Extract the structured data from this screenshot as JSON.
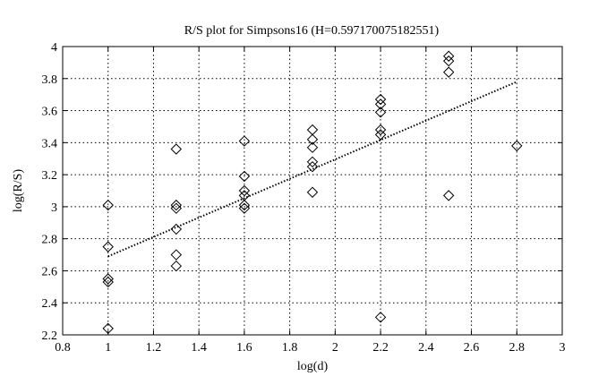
{
  "chart_data": {
    "type": "scatter",
    "title": "R/S plot for Simpsons16 (H=0.597170075182551)",
    "xlabel": "log(d)",
    "ylabel": "log(R/S)",
    "xlim": [
      0.8,
      3.0
    ],
    "ylim": [
      2.2,
      4.0
    ],
    "grid": true,
    "x_ticks": [
      0.8,
      1,
      1.2,
      1.4,
      1.6,
      1.8,
      2,
      2.2,
      2.4,
      2.6,
      2.8,
      3
    ],
    "x_tick_labels": [
      "0.8",
      "1",
      "1.2",
      "1.4",
      "1.6",
      "1.8",
      "2",
      "2.2",
      "2.4",
      "2.6",
      "2.8",
      "3"
    ],
    "y_ticks": [
      2.2,
      2.4,
      2.6,
      2.8,
      3.0,
      3.2,
      3.4,
      3.6,
      3.8,
      4.0
    ],
    "y_tick_labels": [
      "2.2",
      "2.4",
      "2.6",
      "2.8",
      "3",
      "3.2",
      "3.4",
      "3.6",
      "3.8",
      "4"
    ],
    "series": [
      {
        "marker": "diamond",
        "color": "#000000",
        "points": [
          [
            1.0,
            3.01
          ],
          [
            1.0,
            2.75
          ],
          [
            1.0,
            2.55
          ],
          [
            1.0,
            2.53
          ],
          [
            1.0,
            2.24
          ],
          [
            1.3,
            3.36
          ],
          [
            1.3,
            3.01
          ],
          [
            1.3,
            2.99
          ],
          [
            1.3,
            2.86
          ],
          [
            1.3,
            2.7
          ],
          [
            1.3,
            2.63
          ],
          [
            1.6,
            3.41
          ],
          [
            1.6,
            3.19
          ],
          [
            1.6,
            3.1
          ],
          [
            1.6,
            3.07
          ],
          [
            1.6,
            3.01
          ],
          [
            1.6,
            2.99
          ],
          [
            1.9,
            3.48
          ],
          [
            1.9,
            3.42
          ],
          [
            1.9,
            3.37
          ],
          [
            1.9,
            3.28
          ],
          [
            1.9,
            3.25
          ],
          [
            1.9,
            3.09
          ],
          [
            2.2,
            3.67
          ],
          [
            2.2,
            3.64
          ],
          [
            2.2,
            3.59
          ],
          [
            2.2,
            3.48
          ],
          [
            2.2,
            3.45
          ],
          [
            2.2,
            2.31
          ],
          [
            2.5,
            3.94
          ],
          [
            2.5,
            3.91
          ],
          [
            2.5,
            3.84
          ],
          [
            2.5,
            3.07
          ],
          [
            2.8,
            3.38
          ]
        ]
      }
    ],
    "fit_line": {
      "style": "dotted",
      "color": "#000000",
      "x": [
        1.0,
        2.8
      ],
      "y": [
        2.69,
        3.78
      ]
    }
  }
}
